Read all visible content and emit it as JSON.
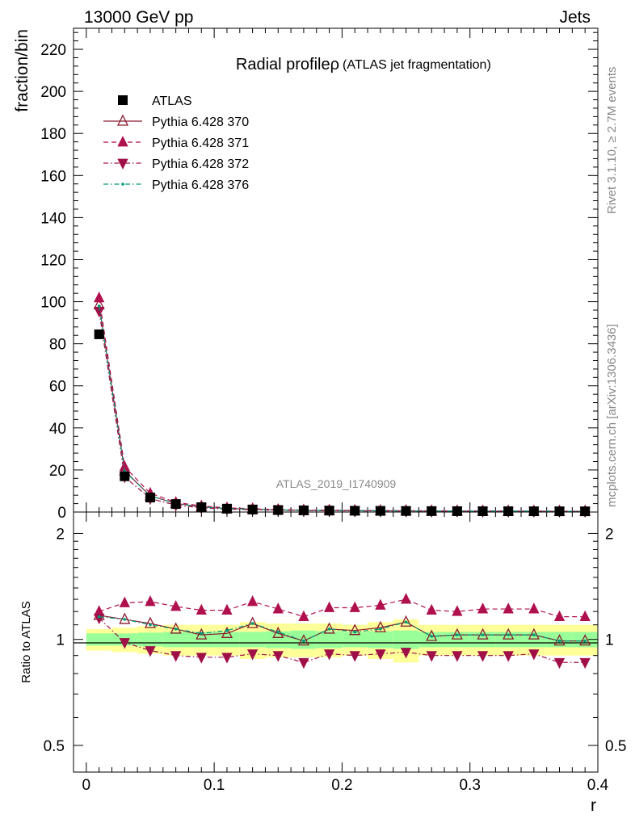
{
  "header": {
    "energy_label": "13000 GeV pp",
    "process_label": "Jets",
    "rivet_label": "Rivet 3.1.10, ≥ 2.7M events",
    "mcplots_label": "mcplots.cern.ch [arXiv:1306.3436]",
    "analysis_id": "ATLAS_2019_I1740909"
  },
  "chart_data": [
    {
      "type": "line",
      "title": "Radial profileρ",
      "subtitle": "(ATLAS jet fragmentation)",
      "ylabel": "fraction/bin",
      "xlabel": "r",
      "xlim": [
        -0.01,
        0.4
      ],
      "ylim": [
        0,
        230
      ],
      "grid": false,
      "legend_position": "top-left",
      "y_ticks": [
        0,
        20,
        40,
        60,
        80,
        100,
        120,
        140,
        160,
        180,
        200,
        220
      ],
      "y_tick_labels": [
        "0",
        "20",
        "40",
        "60",
        "80",
        "100",
        "120",
        "140",
        "160",
        "180",
        "200",
        "220"
      ],
      "x": [
        0.01,
        0.03,
        0.05,
        0.07,
        0.09,
        0.11,
        0.13,
        0.15,
        0.17,
        0.19,
        0.21,
        0.23,
        0.25,
        0.27,
        0.29,
        0.31,
        0.33,
        0.35,
        0.37,
        0.39
      ],
      "series": [
        {
          "name": "ATLAS",
          "color": "#000000",
          "marker": "square",
          "line": "none",
          "values": [
            84.5,
            17.0,
            6.9,
            3.8,
            2.3,
            1.6,
            1.2,
            0.95,
            0.8,
            0.7,
            0.6,
            0.55,
            0.5,
            0.45,
            0.42,
            0.4,
            0.38,
            0.36,
            0.35,
            0.33
          ]
        },
        {
          "name": "Pythia 6.428 370",
          "color": "#8b1a2e",
          "marker": "triangle-up-open",
          "line": "solid",
          "values": [
            98.5,
            19.6,
            7.7,
            4.1,
            2.4,
            1.7,
            1.35,
            1.0,
            0.8,
            0.76,
            0.64,
            0.6,
            0.57,
            0.46,
            0.43,
            0.41,
            0.39,
            0.37,
            0.35,
            0.33
          ]
        },
        {
          "name": "Pythia 6.428 371",
          "color": "#b0104e",
          "marker": "triangle-up",
          "line": "dashed",
          "values": [
            101.8,
            21.5,
            8.9,
            4.6,
            2.9,
            2.0,
            1.6,
            1.2,
            0.95,
            0.89,
            0.76,
            0.7,
            0.67,
            0.56,
            0.52,
            0.5,
            0.47,
            0.45,
            0.41,
            0.39
          ]
        },
        {
          "name": "Pythia 6.428 372",
          "color": "#a01048",
          "marker": "triangle-down",
          "line": "dashdot",
          "values": [
            95.5,
            16.7,
            6.4,
            3.3,
            2.0,
            1.4,
            1.05,
            0.85,
            0.68,
            0.63,
            0.54,
            0.5,
            0.45,
            0.41,
            0.38,
            0.36,
            0.34,
            0.33,
            0.3,
            0.29
          ]
        },
        {
          "name": "Pythia 6.428 376",
          "color": "#009977",
          "marker": "dot",
          "line": "dashdot",
          "values": [
            98.0,
            19.4,
            7.6,
            4.05,
            2.4,
            1.7,
            1.33,
            1.0,
            0.8,
            0.75,
            0.63,
            0.59,
            0.56,
            0.46,
            0.43,
            0.41,
            0.39,
            0.37,
            0.35,
            0.33
          ]
        }
      ]
    },
    {
      "type": "line",
      "title": "",
      "ylabel": "Ratio to ATLAS",
      "xlabel": "r",
      "xlim": [
        -0.01,
        0.4
      ],
      "ylim": [
        0.42,
        2.3
      ],
      "y_scale": "log",
      "grid": false,
      "y_ticks": [
        0.5,
        1,
        2
      ],
      "y_tick_labels": [
        "0.5",
        "1",
        "2"
      ],
      "x_ticks": [
        0,
        0.1,
        0.2,
        0.3,
        0.4
      ],
      "x_tick_labels": [
        "0",
        "0.1",
        "0.2",
        "0.3",
        "0.4"
      ],
      "x": [
        0.01,
        0.03,
        0.05,
        0.07,
        0.09,
        0.11,
        0.13,
        0.15,
        0.17,
        0.19,
        0.21,
        0.23,
        0.25,
        0.27,
        0.29,
        0.31,
        0.33,
        0.35,
        0.37,
        0.39
      ],
      "bands": {
        "stat_color": "#99ff99",
        "total_color": "#ffff99",
        "stat_half_width": [
          0.04,
          0.04,
          0.045,
          0.05,
          0.05,
          0.05,
          0.05,
          0.055,
          0.06,
          0.055,
          0.05,
          0.055,
          0.06,
          0.05,
          0.05,
          0.05,
          0.05,
          0.05,
          0.05,
          0.05
        ],
        "total_half_width": [
          0.07,
          0.08,
          0.09,
          0.1,
          0.1,
          0.1,
          0.12,
          0.11,
          0.11,
          0.11,
          0.1,
          0.12,
          0.14,
          0.1,
          0.1,
          0.1,
          0.1,
          0.1,
          0.1,
          0.1
        ]
      },
      "series": [
        {
          "name": "Pythia 6.428 370",
          "color": "#8b1a2e",
          "marker": "triangle-up-open",
          "line": "solid",
          "values": [
            1.17,
            1.14,
            1.11,
            1.07,
            1.03,
            1.04,
            1.11,
            1.04,
            0.99,
            1.07,
            1.06,
            1.08,
            1.12,
            1.02,
            1.03,
            1.03,
            1.03,
            1.03,
            0.99,
            0.99
          ]
        },
        {
          "name": "Pythia 6.428 371",
          "color": "#b0104e",
          "marker": "triangle-up",
          "line": "dashed",
          "values": [
            1.2,
            1.27,
            1.28,
            1.24,
            1.21,
            1.21,
            1.28,
            1.22,
            1.16,
            1.23,
            1.23,
            1.25,
            1.3,
            1.21,
            1.2,
            1.22,
            1.22,
            1.22,
            1.16,
            1.16
          ]
        },
        {
          "name": "Pythia 6.428 372",
          "color": "#a01048",
          "marker": "triangle-down",
          "line": "dashdot",
          "values": [
            1.15,
            0.98,
            0.93,
            0.9,
            0.89,
            0.89,
            0.91,
            0.9,
            0.86,
            0.91,
            0.9,
            0.91,
            0.92,
            0.9,
            0.9,
            0.9,
            0.9,
            0.91,
            0.86,
            0.86
          ]
        },
        {
          "name": "Pythia 6.428 376",
          "color": "#009977",
          "marker": "dot",
          "line": "dashdot",
          "values": [
            1.16,
            1.14,
            1.1,
            1.07,
            1.04,
            1.06,
            1.11,
            1.05,
            0.99,
            1.07,
            1.05,
            1.07,
            1.12,
            1.02,
            1.03,
            1.03,
            1.03,
            1.03,
            0.99,
            0.99
          ]
        }
      ]
    }
  ]
}
